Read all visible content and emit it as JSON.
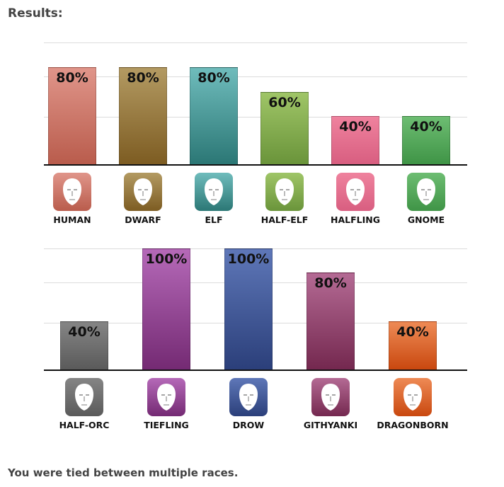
{
  "heading": "Results:",
  "footer": "You were tied between multiple races.",
  "chart_data": [
    {
      "type": "bar",
      "title": "",
      "xlabel": "",
      "ylabel": "",
      "ylim": [
        0,
        100
      ],
      "categories": [
        "HUMAN",
        "DWARF",
        "ELF",
        "HALF-ELF",
        "HALFLING",
        "GNOME"
      ],
      "values": [
        80,
        80,
        80,
        60,
        40,
        40
      ],
      "labels": [
        "80%",
        "80%",
        "80%",
        "60%",
        "40%",
        "40%"
      ],
      "colors": [
        [
          "#e0958a",
          "#b95c4c"
        ],
        [
          "#b39a62",
          "#7d5c22"
        ],
        [
          "#6fbcbc",
          "#2b7775"
        ],
        [
          "#9fc567",
          "#6a943a"
        ],
        [
          "#ef829e",
          "#d85e80"
        ],
        [
          "#6dbd72",
          "#3f9446"
        ]
      ],
      "icons": [
        "human-face-icon",
        "dwarf-face-icon",
        "elf-face-icon",
        "half-elf-face-icon",
        "halfling-face-icon",
        "gnome-face-icon"
      ]
    },
    {
      "type": "bar",
      "title": "",
      "xlabel": "",
      "ylabel": "",
      "ylim": [
        0,
        100
      ],
      "categories": [
        "HALF-ORC",
        "TIEFLING",
        "DROW",
        "GITHYANKI",
        "DRAGONBORN"
      ],
      "values": [
        40,
        100,
        100,
        80,
        40
      ],
      "labels": [
        "40%",
        "100%",
        "100%",
        "80%",
        "40%"
      ],
      "colors": [
        [
          "#858585",
          "#5a5a5a"
        ],
        [
          "#b569b8",
          "#742a73"
        ],
        [
          "#5e77b8",
          "#2b3f7a"
        ],
        [
          "#b46a94",
          "#74284f"
        ],
        [
          "#ee8a55",
          "#c9480f"
        ]
      ],
      "icons": [
        "half-orc-face-icon",
        "tiefling-face-icon",
        "drow-face-icon",
        "githyanki-face-icon",
        "dragonborn-face-icon"
      ]
    }
  ]
}
